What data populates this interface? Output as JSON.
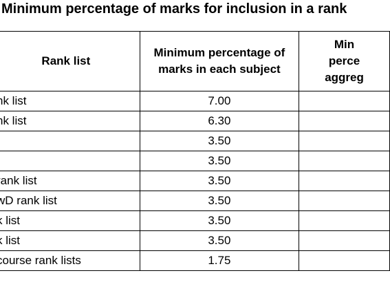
{
  "title": "Minimum percentage of marks for inclusion in a rank",
  "table": {
    "header": [
      "Rank list",
      "Minimum percentage of\nmarks in each subject",
      "Min\nperce\naggreg"
    ],
    "rows": [
      {
        "rank_list": "nk list",
        "min_subject": "7.00"
      },
      {
        "rank_list": "nk list",
        "min_subject": "6.30"
      },
      {
        "min_subject": "3.50"
      },
      {
        "min_subject": "3.50"
      },
      {
        "rank_list": "rank list",
        "min_subject": "3.50"
      },
      {
        "rank_list": "wD rank list",
        "min_subject": "3.50"
      },
      {
        "rank_list": "k list",
        "min_subject": "3.50"
      },
      {
        "rank_list": "k list",
        "min_subject": "3.50"
      },
      {
        "rank_list": "course rank lists",
        "min_subject": "1.75"
      }
    ]
  }
}
